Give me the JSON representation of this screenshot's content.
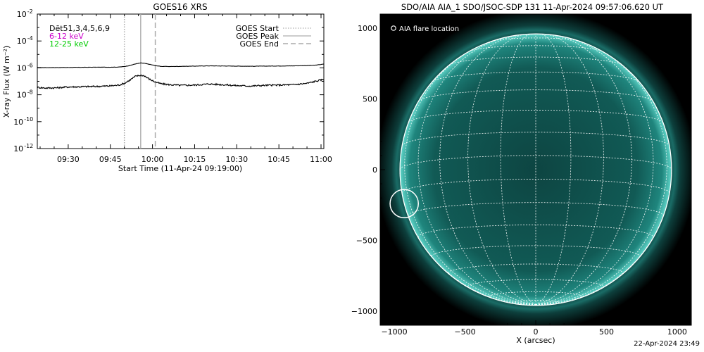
{
  "chart_data": [
    {
      "type": "line",
      "title": "GOES16 XRS",
      "xlabel": "Start Time (11-Apr-24 09:19:00)",
      "ylabel": "X-ray Flux (W m⁻²)",
      "x_unit": "minutes of day",
      "xlim": [
        559,
        661
      ],
      "ylim_log10": [
        -12,
        -2
      ],
      "ylog": true,
      "x_ticks": [
        {
          "value": 570,
          "label": "09:30"
        },
        {
          "value": 585,
          "label": "09:45"
        },
        {
          "value": 600,
          "label": "10:00"
        },
        {
          "value": 615,
          "label": "10:15"
        },
        {
          "value": 630,
          "label": "10:30"
        },
        {
          "value": 645,
          "label": "10:45"
        },
        {
          "value": 660,
          "label": "11:00"
        }
      ],
      "y_ticks": [
        {
          "value": -2,
          "base": "10",
          "exp": "-2"
        },
        {
          "value": -4,
          "base": "10",
          "exp": "-4"
        },
        {
          "value": -6,
          "base": "10",
          "exp": "-6"
        },
        {
          "value": -8,
          "base": "10",
          "exp": "-8"
        },
        {
          "value": -10,
          "base": "10",
          "exp": "-10"
        },
        {
          "value": -12,
          "base": "10",
          "exp": "-12"
        }
      ],
      "detector_label": "Dēt51,3,4,5,6,9",
      "series": [
        {
          "name": "6-12 keV",
          "color": "#cc00cc",
          "draw_color": "#000000",
          "log10_values": [
            [
              559,
              -5.98
            ],
            [
              565,
              -5.98
            ],
            [
              570,
              -5.97
            ],
            [
              575,
              -5.96
            ],
            [
              580,
              -5.95
            ],
            [
              585,
              -5.95
            ],
            [
              588,
              -5.94
            ],
            [
              590,
              -5.9
            ],
            [
              592,
              -5.82
            ],
            [
              594,
              -5.7
            ],
            [
              595.8,
              -5.64
            ],
            [
              597,
              -5.66
            ],
            [
              599,
              -5.74
            ],
            [
              601,
              -5.83
            ],
            [
              603,
              -5.89
            ],
            [
              606,
              -5.9
            ],
            [
              610,
              -5.89
            ],
            [
              615,
              -5.87
            ],
            [
              620,
              -5.85
            ],
            [
              625,
              -5.86
            ],
            [
              630,
              -5.87
            ],
            [
              635,
              -5.88
            ],
            [
              640,
              -5.87
            ],
            [
              645,
              -5.86
            ],
            [
              650,
              -5.85
            ],
            [
              655,
              -5.83
            ],
            [
              658,
              -5.8
            ],
            [
              661,
              -5.72
            ]
          ]
        },
        {
          "name": "12-25 keV",
          "color": "#00cc00",
          "draw_color": "#000000",
          "log10_values": [
            [
              559,
              -7.45
            ],
            [
              562,
              -7.5
            ],
            [
              566,
              -7.48
            ],
            [
              570,
              -7.42
            ],
            [
              575,
              -7.4
            ],
            [
              580,
              -7.38
            ],
            [
              585,
              -7.34
            ],
            [
              588,
              -7.28
            ],
            [
              590,
              -7.15
            ],
            [
              592,
              -6.9
            ],
            [
              594,
              -6.62
            ],
            [
              595.8,
              -6.55
            ],
            [
              597,
              -6.58
            ],
            [
              599,
              -6.85
            ],
            [
              601,
              -7.05
            ],
            [
              603,
              -7.18
            ],
            [
              606,
              -7.25
            ],
            [
              610,
              -7.3
            ],
            [
              615,
              -7.28
            ],
            [
              620,
              -7.2
            ],
            [
              625,
              -7.25
            ],
            [
              630,
              -7.32
            ],
            [
              635,
              -7.35
            ],
            [
              640,
              -7.3
            ],
            [
              645,
              -7.28
            ],
            [
              650,
              -7.25
            ],
            [
              655,
              -7.15
            ],
            [
              658,
              -7.0
            ],
            [
              661,
              -6.85
            ]
          ]
        }
      ],
      "markers": [
        {
          "name": "GOES Start",
          "x": 590,
          "style": "dotted",
          "color": "#aaaaaa"
        },
        {
          "name": "GOES Peak",
          "x": 595.8,
          "style": "solid",
          "color": "#aaaaaa"
        },
        {
          "name": "GOES End",
          "x": 601,
          "style": "dashed",
          "color": "#aaaaaa"
        }
      ]
    },
    {
      "type": "image",
      "title": "SDO/AIA AIA_1 SDO/JSOC-SDP 131 11-Apr-2024 09:57:06.620 UT",
      "xlabel": "X (arcsec)",
      "xlim": [
        -1100,
        1100
      ],
      "ylim": [
        -1100,
        1100
      ],
      "x_ticks": [
        -1000,
        -500,
        0,
        500,
        1000
      ],
      "y_ticks": [
        -1000,
        -500,
        0,
        500,
        1000
      ],
      "solar_radius_arcsec": 960,
      "disk_color": "#0e4e4a",
      "limb_color": "#3ab5aa",
      "legend": "AIA flare location",
      "flare_location": {
        "x": -930,
        "y": -240,
        "radius_arcsec": 100
      }
    }
  ],
  "footer": "22-Apr-2024 23:49"
}
